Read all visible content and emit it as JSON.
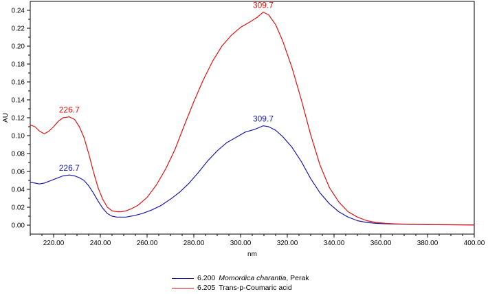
{
  "chart_data": {
    "type": "line",
    "xlabel": "nm",
    "ylabel": "AU",
    "xlim": [
      210,
      400
    ],
    "ylim": [
      -0.01,
      0.25
    ],
    "x_ticks": [
      220,
      240,
      260,
      280,
      300,
      320,
      340,
      360,
      380,
      400
    ],
    "x_tick_labels": [
      "220.00",
      "240.00",
      "260.00",
      "280.00",
      "300.00",
      "320.00",
      "340.00",
      "360.00",
      "380.00",
      "400.00"
    ],
    "y_ticks": [
      0.0,
      0.02,
      0.04,
      0.06,
      0.08,
      0.1,
      0.12,
      0.14,
      0.16,
      0.18,
      0.2,
      0.22,
      0.24
    ],
    "y_tick_labels": [
      "0.00",
      "0.02",
      "0.04",
      "0.06",
      "0.08",
      "0.10",
      "0.12",
      "0.14",
      "0.16",
      "0.18",
      "0.20",
      "0.22",
      "0.24"
    ],
    "grid": false,
    "legend_position": "bottom-center",
    "series": [
      {
        "id": "6.200",
        "name": "Momordica charantia",
        "name_suffix": ", Perak",
        "color": "#1a1aaa",
        "x": [
          210,
          212,
          214,
          216,
          218,
          220,
          222,
          224,
          226.7,
          229,
          231,
          233,
          235,
          237,
          239,
          241,
          243,
          245,
          247,
          249,
          251,
          253,
          255,
          258,
          262,
          266,
          270,
          274,
          278,
          282,
          286,
          290,
          294,
          298,
          302,
          306,
          309.7,
          312,
          315,
          318,
          322,
          326,
          330,
          334,
          338,
          342,
          346,
          350,
          354,
          358,
          362,
          366,
          370,
          375,
          380,
          385,
          390,
          395,
          400
        ],
        "y": [
          0.048,
          0.047,
          0.046,
          0.047,
          0.049,
          0.051,
          0.053,
          0.055,
          0.056,
          0.055,
          0.053,
          0.05,
          0.044,
          0.036,
          0.027,
          0.019,
          0.013,
          0.01,
          0.009,
          0.009,
          0.009,
          0.01,
          0.011,
          0.013,
          0.017,
          0.022,
          0.029,
          0.037,
          0.047,
          0.059,
          0.072,
          0.083,
          0.092,
          0.098,
          0.104,
          0.107,
          0.111,
          0.11,
          0.106,
          0.099,
          0.087,
          0.071,
          0.052,
          0.036,
          0.024,
          0.015,
          0.009,
          0.005,
          0.003,
          0.002,
          0.0015,
          0.0012,
          0.001,
          0.0008,
          0.0006,
          0.0005,
          0.0004,
          0.0003,
          0.0002
        ],
        "peak_label": {
          "x": 309.7,
          "y": 0.111,
          "text": "309.7"
        },
        "side_label": {
          "x": 226.7,
          "y": 0.056,
          "text": "226.7"
        }
      },
      {
        "id": "6.205",
        "name": "Trans-p-Coumaric acid",
        "name_suffix": "",
        "color": "#dd1111",
        "x": [
          210,
          212,
          214,
          216,
          218,
          220,
          222,
          224,
          226.7,
          229,
          231,
          233,
          235,
          237,
          239,
          241,
          243,
          245,
          247,
          249,
          251,
          253,
          256,
          260,
          264,
          268,
          272,
          276,
          280,
          284,
          288,
          292,
          296,
          300,
          304,
          307,
          309.7,
          312,
          315,
          318,
          322,
          326,
          330,
          334,
          338,
          342,
          346,
          350,
          354,
          358,
          362,
          366,
          370,
          375,
          380,
          385,
          390,
          395,
          400
        ],
        "y": [
          0.112,
          0.11,
          0.105,
          0.102,
          0.105,
          0.11,
          0.116,
          0.12,
          0.121,
          0.118,
          0.11,
          0.098,
          0.08,
          0.06,
          0.042,
          0.029,
          0.02,
          0.016,
          0.015,
          0.015,
          0.016,
          0.018,
          0.022,
          0.031,
          0.045,
          0.063,
          0.085,
          0.112,
          0.138,
          0.162,
          0.183,
          0.2,
          0.212,
          0.221,
          0.227,
          0.232,
          0.238,
          0.235,
          0.224,
          0.206,
          0.176,
          0.14,
          0.101,
          0.067,
          0.042,
          0.026,
          0.015,
          0.009,
          0.005,
          0.003,
          0.002,
          0.0015,
          0.0012,
          0.001,
          0.0008,
          0.0006,
          0.0005,
          0.0004,
          0.0003
        ],
        "peak_label": {
          "x": 309.7,
          "y": 0.238,
          "text": "309.7"
        },
        "side_label": {
          "x": 226.7,
          "y": 0.121,
          "text": "226.7"
        }
      }
    ]
  }
}
